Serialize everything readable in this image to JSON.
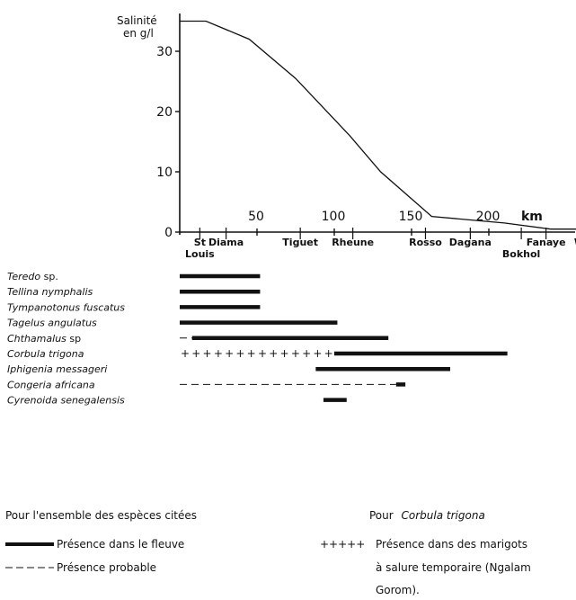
{
  "chart_data": {
    "type": "line",
    "ylabel": [
      "Salinité",
      "en g/l"
    ],
    "xunit": "km",
    "ylim": [
      0,
      36
    ],
    "xlim": [
      0,
      260
    ],
    "yticks": [
      0,
      10,
      20,
      30
    ],
    "xticks": [
      50,
      100,
      150,
      200
    ],
    "salinity_curve": {
      "x": [
        0,
        17,
        45,
        75,
        110,
        130,
        163,
        210,
        240,
        260
      ],
      "y": [
        35,
        35,
        32,
        25.5,
        16,
        10,
        2.6,
        1.5,
        0.5,
        0.5
      ]
    },
    "places": [
      {
        "name": "St",
        "name2": "Louis",
        "km": 13
      },
      {
        "name": "Diama",
        "km": 30
      },
      {
        "name": "Tiguet",
        "km": 78
      },
      {
        "name": "Rheune",
        "km": 112
      },
      {
        "name": "Rosso",
        "km": 159
      },
      {
        "name": "Dagana",
        "km": 188
      },
      {
        "name": "Bokhol",
        "km": 221,
        "below": true
      },
      {
        "name": "Fanaye",
        "km": 237
      },
      {
        "name": "Walo",
        "km": 264
      }
    ],
    "species": [
      {
        "name": "Teredo",
        "suffix": " sp.",
        "present": [
          [
            0,
            52
          ]
        ]
      },
      {
        "name": "Tellina nymphalis",
        "present": [
          [
            0,
            52
          ]
        ]
      },
      {
        "name": "Tympanotonus fuscatus",
        "present": [
          [
            0,
            52
          ]
        ]
      },
      {
        "name": "Tagelus angulatus",
        "present": [
          [
            0,
            102
          ]
        ]
      },
      {
        "name": "Chthamalus",
        "suffix": " sp",
        "probable": [
          [
            0,
            8
          ]
        ],
        "present": [
          [
            8,
            135
          ]
        ]
      },
      {
        "name": "Corbula trigona",
        "temporary": [
          [
            0,
            100
          ]
        ],
        "present": [
          [
            100,
            212
          ]
        ]
      },
      {
        "name": "Iphigenia messageri",
        "present": [
          [
            88,
            175
          ]
        ]
      },
      {
        "name": "Congeria africana",
        "probable": [
          [
            0,
            140
          ]
        ],
        "present": [
          [
            140,
            146
          ]
        ]
      },
      {
        "name": "Cyrenoida senegalensis",
        "present": [
          [
            93,
            108
          ]
        ]
      }
    ]
  },
  "legend": {
    "general_title": "Pour l'ensemble des espèces citées",
    "present_label": "Présence dans le fleuve",
    "probable_label": "Présence probable",
    "specific_title_prefix": "Pour",
    "specific_title_species": "Corbula trigona",
    "temporary_symbol": "+++++",
    "temporary_label_1": "Présence dans des marigots",
    "temporary_label_2": "à salure temporaire (Ngalam",
    "temporary_label_3": "Gorom)."
  },
  "colors": {
    "ink": "#111111",
    "background": "#ffffff"
  }
}
